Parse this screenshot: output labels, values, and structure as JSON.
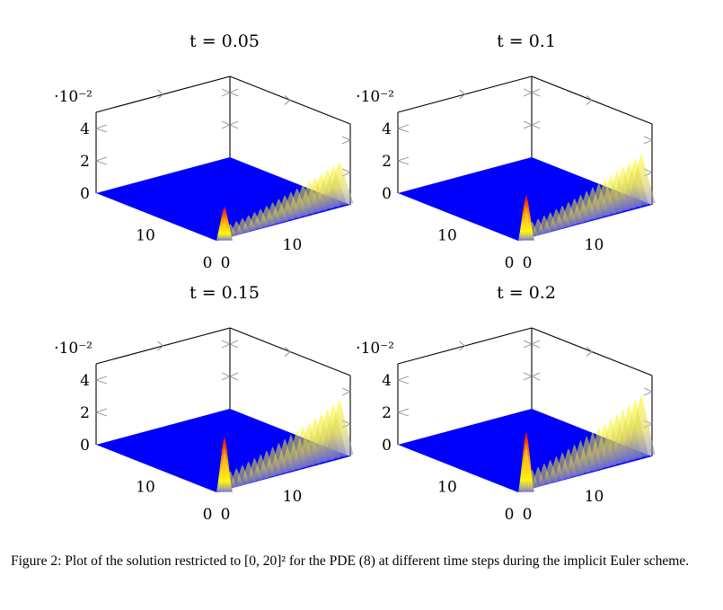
{
  "figure": {
    "caption": "Figure 2: Plot of the solution restricted to [0, 20]² for the PDE (8) at different time steps during the implicit Euler scheme."
  },
  "colors": {
    "surface_base": "#0000ff",
    "peak_low": "#ffff00",
    "peak_high": "#ff0000",
    "axis": "#000000",
    "ticks": "#888888"
  },
  "chart_data": [
    {
      "type": "surface3d",
      "title": "t = 0.05",
      "zlabel_multiplier": "·10⁻²",
      "zticks": [
        "0",
        "2",
        "4"
      ],
      "zlim": [
        0,
        0.05
      ],
      "x_ticks": [
        "0",
        "10"
      ],
      "y_ticks": [
        "0",
        "10"
      ],
      "xlim": [
        0,
        20
      ],
      "ylim": [
        0,
        20
      ],
      "ridge_peak": 0.028,
      "spike_peak": 0.02,
      "grid": false
    },
    {
      "type": "surface3d",
      "title": "t = 0.1",
      "zlabel_multiplier": "·10⁻²",
      "zticks": [
        "0",
        "2",
        "4"
      ],
      "zlim": [
        0,
        0.05
      ],
      "x_ticks": [
        "0",
        "10"
      ],
      "y_ticks": [
        "0",
        "10"
      ],
      "xlim": [
        0,
        20
      ],
      "ylim": [
        0,
        20
      ],
      "ridge_peak": 0.033,
      "spike_peak": 0.027,
      "grid": false
    },
    {
      "type": "surface3d",
      "title": "t = 0.15",
      "zlabel_multiplier": "·10⁻²",
      "zticks": [
        "0",
        "2",
        "4"
      ],
      "zlim": [
        0,
        0.05
      ],
      "x_ticks": [
        "0",
        "10"
      ],
      "y_ticks": [
        "0",
        "10"
      ],
      "xlim": [
        0,
        20
      ],
      "ylim": [
        0,
        20
      ],
      "ridge_peak": 0.037,
      "spike_peak": 0.033,
      "grid": false
    },
    {
      "type": "surface3d",
      "title": "t = 0.2",
      "zlabel_multiplier": "·10⁻²",
      "zticks": [
        "0",
        "2",
        "4"
      ],
      "zlim": [
        0,
        0.05
      ],
      "x_ticks": [
        "0",
        "10"
      ],
      "y_ticks": [
        "0",
        "10"
      ],
      "xlim": [
        0,
        20
      ],
      "ylim": [
        0,
        20
      ],
      "ridge_peak": 0.04,
      "spike_peak": 0.036,
      "grid": false
    }
  ]
}
